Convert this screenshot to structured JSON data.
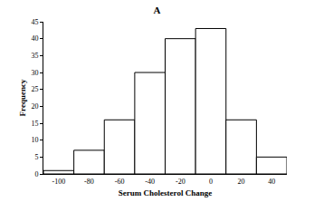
{
  "chart_data": {
    "type": "histogram",
    "title": "A",
    "x_label": "Serum Cholesterol Change",
    "y_label": "Frequency",
    "bins": [
      -110,
      -90,
      -70,
      -50,
      -30,
      -10,
      10,
      30,
      50
    ],
    "values": [
      1,
      7,
      16,
      30,
      40,
      43,
      16,
      5
    ],
    "color": "#ffffff",
    "xlim": [
      -110,
      50
    ],
    "xticks": [
      -100,
      -80,
      -60,
      -40,
      -20,
      0,
      20,
      40
    ],
    "ylim": [
      0,
      45
    ],
    "yticks": [
      0,
      5,
      10,
      15,
      20,
      25,
      30,
      35,
      40,
      45
    ],
    "grid": false
  }
}
